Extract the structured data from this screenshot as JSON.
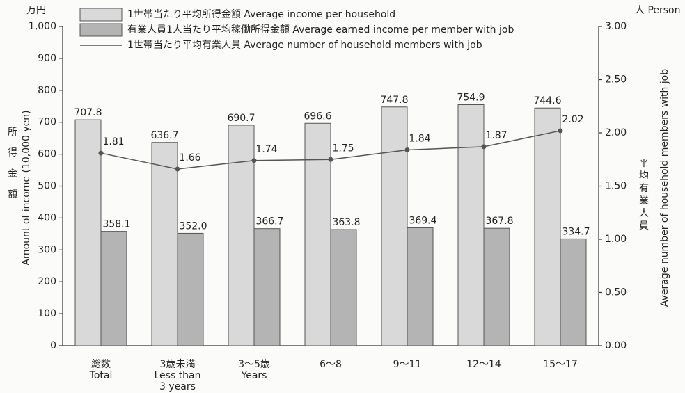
{
  "chart_data": {
    "type": "bar_line",
    "y_unit": "万円",
    "y2_unit": "人 Person",
    "ylabel_ja": "所得金額",
    "ylabel": "Amount of income (10,000 yen)",
    "y2label_ja": "平均有業人員",
    "y2label": "Average number of household members with job",
    "categories": [
      "総数\nTotal",
      "3歳未満\nLess than\n3 years",
      "3～5歳\nYears",
      "6～8",
      "9～11",
      "12～14",
      "15～17"
    ],
    "series": [
      {
        "name": "1世帯当たり平均所得金額 Average income per household",
        "color": "#d9d9d9",
        "kind": "bar",
        "values": [
          707.8,
          636.7,
          690.7,
          696.6,
          747.8,
          754.9,
          744.6
        ]
      },
      {
        "name": "有業人員1人当たり平均稼働所得金額 Average earned income per member with job",
        "color": "#b4b4b4",
        "kind": "bar",
        "values": [
          358.1,
          352.0,
          366.7,
          363.8,
          369.4,
          367.8,
          334.7
        ],
        "value_labels": [
          "358.1",
          "352.0",
          "366.7",
          "363.8",
          "369.4",
          "367.8",
          "334.7"
        ]
      },
      {
        "name": "1世帯当たり平均有業人員 Average number of household members with job",
        "color": "#555555",
        "kind": "line",
        "axis": "y2",
        "values": [
          1.81,
          1.66,
          1.74,
          1.75,
          1.84,
          1.87,
          2.02
        ]
      }
    ],
    "ylim": [
      0,
      1000
    ],
    "yticks": [
      0,
      100,
      200,
      300,
      400,
      500,
      600,
      700,
      800,
      900,
      {
        "value": 1000,
        "label": "1,000"
      }
    ],
    "y2lim": [
      0,
      3
    ],
    "y2ticks": [
      {
        "value": 0,
        "label": "0.00"
      },
      {
        "value": 0.5,
        "label": "0.50"
      },
      {
        "value": 1,
        "label": "1.00"
      },
      {
        "value": 1.5,
        "label": "1.50"
      },
      {
        "value": 2,
        "label": "2.00"
      },
      {
        "value": 2.5,
        "label": "2.50"
      },
      {
        "value": 3,
        "label": "3.00"
      }
    ]
  }
}
